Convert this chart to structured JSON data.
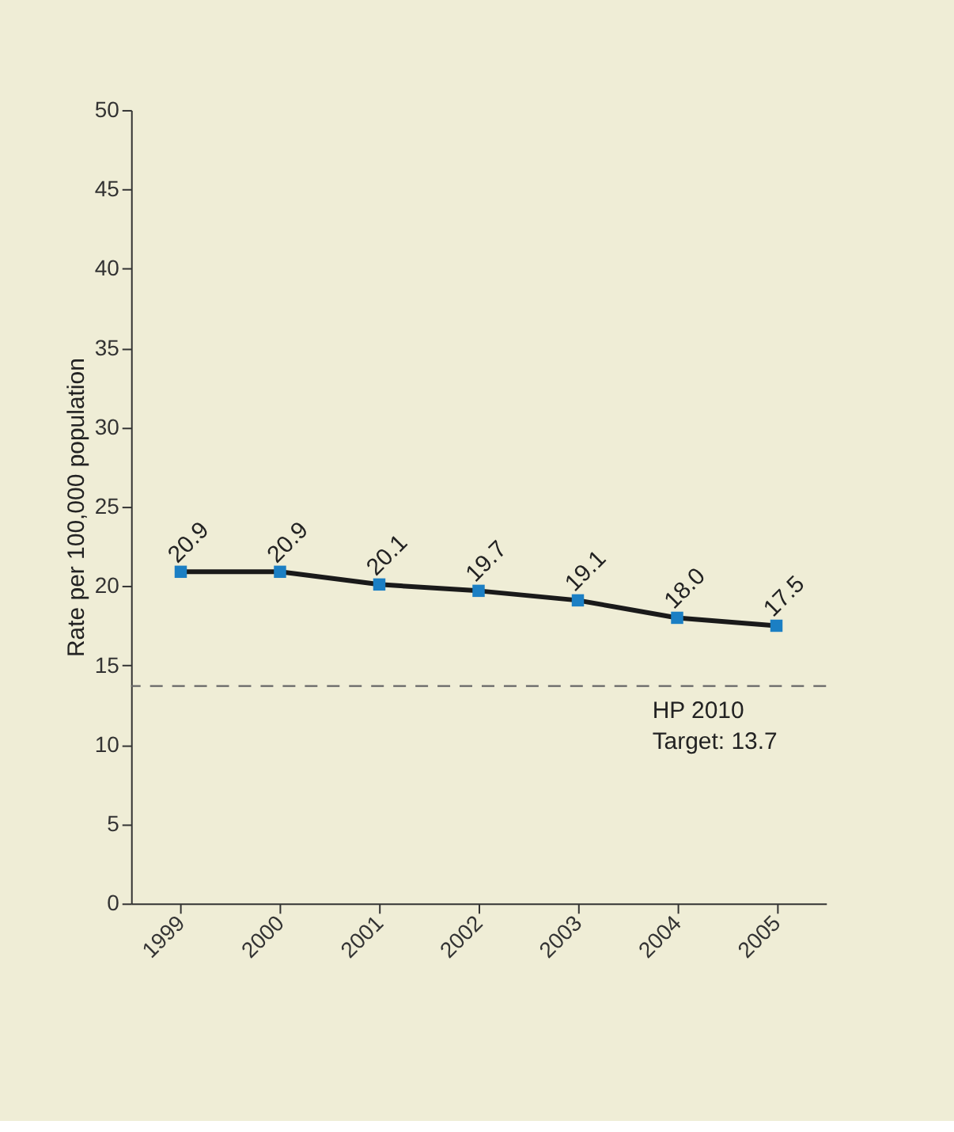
{
  "chart_data": {
    "type": "line",
    "ylabel": "Rate per 100,000 population",
    "categories": [
      "1999",
      "2000",
      "2001",
      "2002",
      "2003",
      "2004",
      "2005"
    ],
    "series": [
      {
        "color": "#1a1a1a",
        "values": [
          20.9,
          20.9,
          20.1,
          19.7,
          19.1,
          18.0,
          17.5
        ]
      }
    ],
    "value_labels": [
      "20.9",
      "20.9",
      "20.1",
      "19.7",
      "19.1",
      "18.0",
      "17.5"
    ],
    "marker": "square",
    "line_style": "solid",
    "ylim": [
      0,
      50
    ],
    "yticks": [
      0,
      5,
      10,
      15,
      20,
      25,
      30,
      35,
      40,
      45,
      50
    ],
    "grid": false,
    "ref_lines": [
      {
        "axis": "y",
        "value": 13.7,
        "label": "HP 2010\nTarget: 13.7",
        "color": "#666666",
        "line_style": "dashed"
      }
    ]
  }
}
